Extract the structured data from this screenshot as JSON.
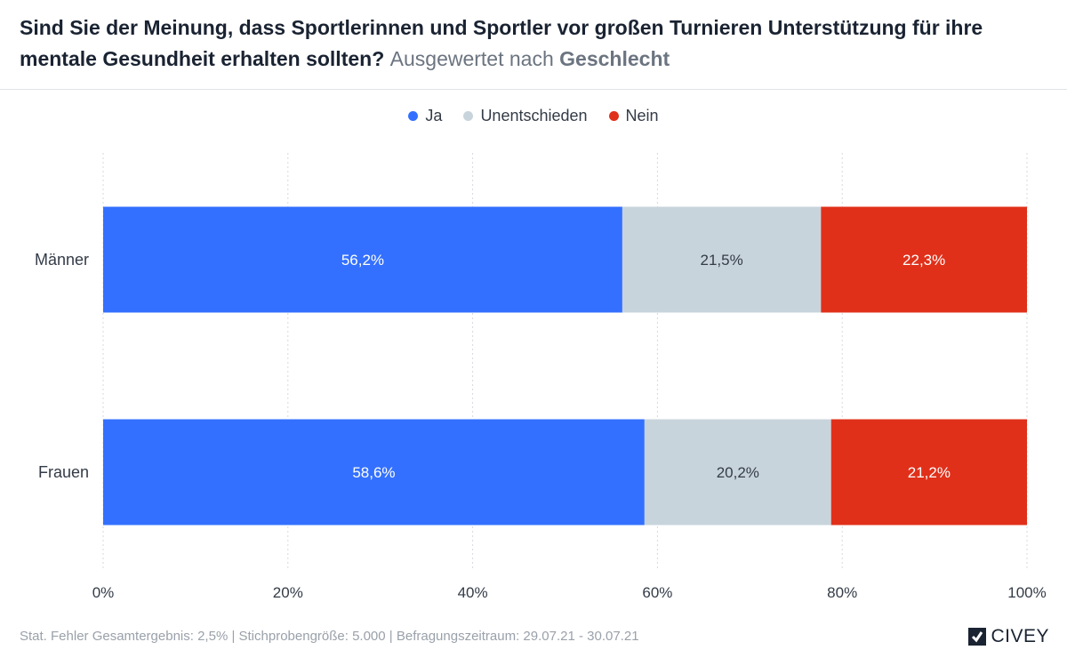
{
  "header": {
    "question": "Sind Sie der Meinung, dass Sportlerinnen und Sportler vor großen Turnieren Unterstützung für ihre mentale Gesundheit erhalten sollten?",
    "subtitle_prefix": "Ausgewertet nach",
    "subtitle_group": "Geschlecht"
  },
  "chart_data": {
    "type": "bar",
    "orientation": "horizontal",
    "stacked": true,
    "categories": [
      "Männer",
      "Frauen"
    ],
    "series": [
      {
        "name": "Ja",
        "color": "#3370ff",
        "label_color": "#ffffff",
        "values": [
          56.2,
          58.6
        ],
        "labels": [
          "56,2%",
          "58,6%"
        ]
      },
      {
        "name": "Unentschieden",
        "color": "#c8d4dc",
        "label_color": "#333b47",
        "values": [
          21.5,
          20.2
        ],
        "labels": [
          "21,5%",
          "20,2%"
        ]
      },
      {
        "name": "Nein",
        "color": "#e0301a",
        "label_color": "#ffffff",
        "values": [
          22.3,
          21.2
        ],
        "labels": [
          "22,3%",
          "21,2%"
        ]
      }
    ],
    "xlim": [
      0,
      100
    ],
    "xticks": [
      0,
      20,
      40,
      60,
      80,
      100
    ],
    "xtick_labels": [
      "0%",
      "20%",
      "40%",
      "60%",
      "80%",
      "100%"
    ],
    "grid": true,
    "legend": "top-center"
  },
  "footer": {
    "text": "Stat. Fehler Gesamtergebnis: 2,5% | Stichprobengröße: 5.000 | Befragungszeitraum: 29.07.21 - 30.07.21"
  },
  "brand": {
    "name": "CIVEY",
    "icon": "civey-logo-icon"
  }
}
